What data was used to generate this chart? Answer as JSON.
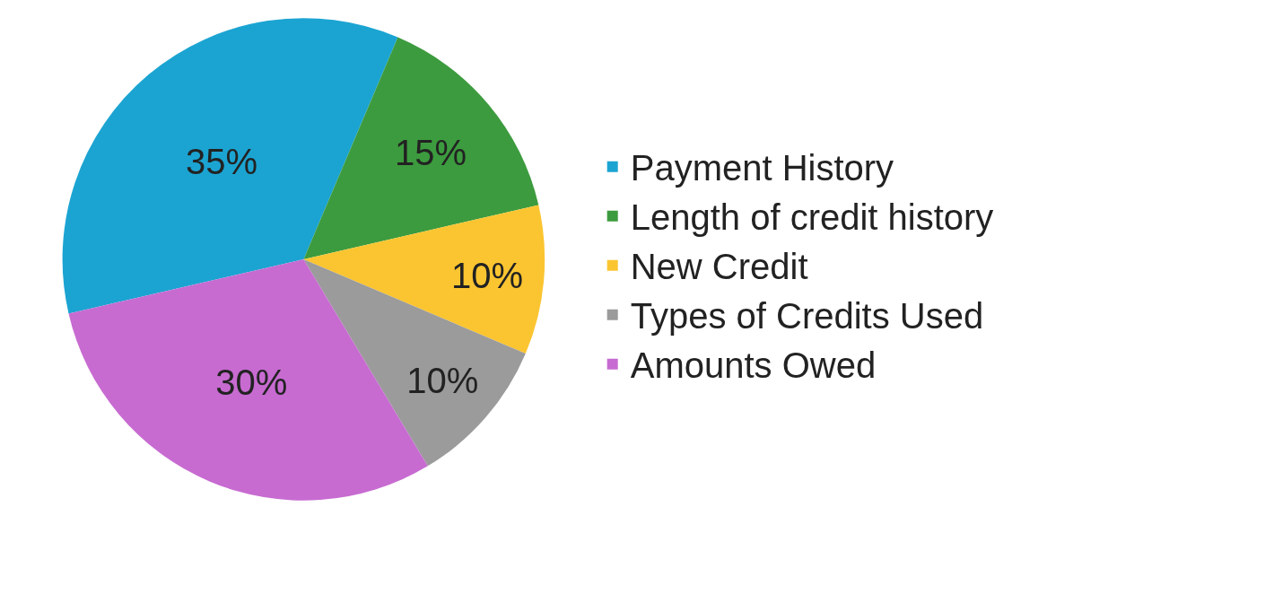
{
  "chart_data": {
    "type": "pie",
    "categories": [
      "Payment History",
      "Amounts Owed",
      "Length of credit history",
      "New Credit",
      "Types of Credits Used"
    ],
    "values": [
      35,
      30,
      15,
      10,
      10
    ],
    "colors": [
      "#1ba4d2",
      "#c76bd1",
      "#3c9b3e",
      "#fbc531",
      "#9b9b9b"
    ],
    "value_labels": [
      "35%",
      "30%",
      "15%",
      "10%",
      "10%"
    ],
    "legend": "right"
  }
}
